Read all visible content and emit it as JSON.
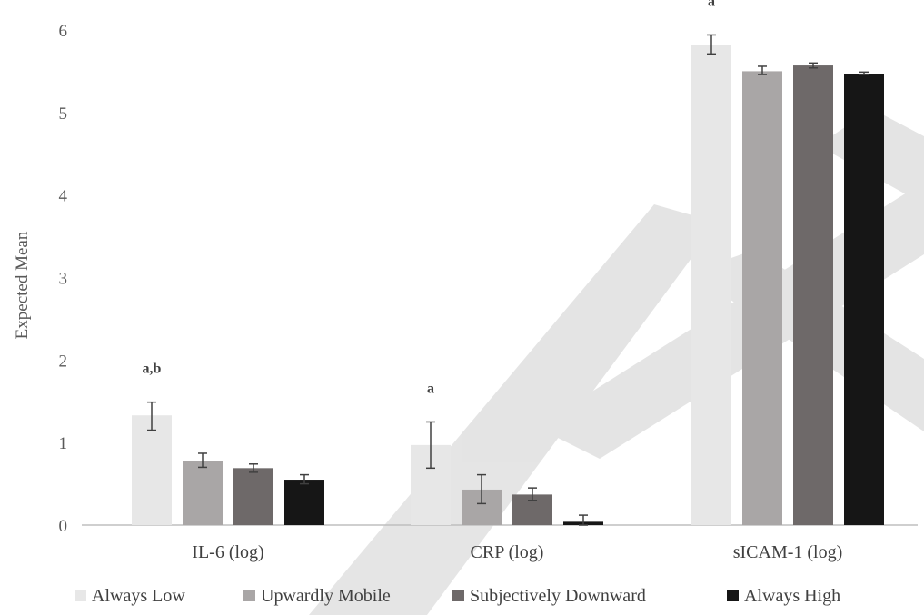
{
  "chart_data": {
    "type": "bar",
    "title": "",
    "xlabel": "",
    "ylabel": "Expected Mean",
    "ylim": [
      0,
      6
    ],
    "yticks": [
      "0",
      "1",
      "2",
      "3",
      "4",
      "5",
      "6"
    ],
    "grid": false,
    "legend_position": "bottom",
    "categories": [
      "IL-6 (log)",
      "CRP (log)",
      "sICAM-1 (log)"
    ],
    "series": [
      {
        "name": "Always Low",
        "color": "#e7e7e7",
        "values": [
          1.33,
          0.97,
          5.82
        ],
        "err_low": [
          1.15,
          0.69,
          5.71
        ],
        "err_high": [
          1.49,
          1.25,
          5.94
        ]
      },
      {
        "name": "Upwardly Mobile",
        "color": "#a9a6a6",
        "values": [
          0.78,
          0.43,
          5.5
        ],
        "err_low": [
          0.7,
          0.26,
          5.46
        ],
        "err_high": [
          0.87,
          0.61,
          5.56
        ]
      },
      {
        "name": "Subjectively Downward",
        "color": "#6e6969",
        "values": [
          0.69,
          0.37,
          5.57
        ],
        "err_low": [
          0.64,
          0.3,
          5.54
        ],
        "err_high": [
          0.74,
          0.45,
          5.6
        ]
      },
      {
        "name": "Always High",
        "color": "#161616",
        "values": [
          0.55,
          0.04,
          5.47
        ],
        "err_low": [
          0.5,
          0.0,
          5.46
        ],
        "err_high": [
          0.61,
          0.12,
          5.49
        ]
      }
    ],
    "annotations": [
      {
        "category": 0,
        "series": 0,
        "text": "a,b"
      },
      {
        "category": 1,
        "series": 0,
        "text": "a"
      },
      {
        "category": 2,
        "series": 0,
        "text": "a"
      }
    ]
  }
}
